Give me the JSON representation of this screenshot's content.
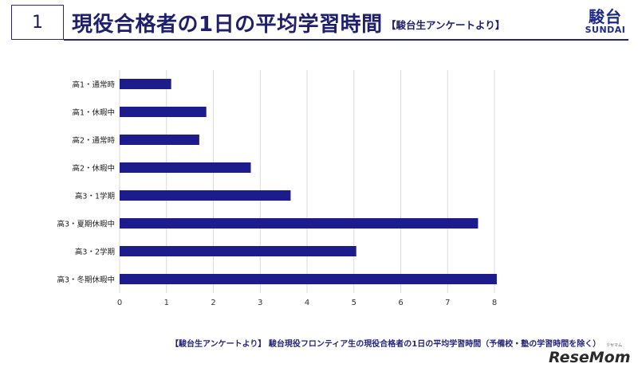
{
  "header": {
    "slide_number": "1",
    "title": "現役合格者の1日の平均学習時間",
    "subtitle": "【駿台生アンケートより】",
    "logo_kanji": "駿台",
    "logo_roman": "SUNDAI"
  },
  "chart_data": {
    "type": "bar",
    "orientation": "horizontal",
    "title": "",
    "categories": [
      "高1・通常時",
      "高1・休暇中",
      "高2・通常時",
      "高2・休暇中",
      "高3・1学期",
      "高3・夏期休暇中",
      "高3・2学期",
      "高3・冬期休暇中"
    ],
    "values": [
      1.1,
      1.85,
      1.7,
      2.8,
      3.65,
      7.65,
      5.05,
      8.05
    ],
    "xlim": [
      0,
      8
    ],
    "xticks": [
      "0",
      "1",
      "2",
      "3",
      "4",
      "5",
      "6",
      "7",
      "8"
    ],
    "xlabel": "",
    "ylabel": "",
    "grid": true,
    "bar_color": "#1c1c8c"
  },
  "caption": "【駿台生アンケートより】 駿台現役フロンティア生の現役合格者の1日の平均学習時間（予備校・塾の学習時間を除く）",
  "watermark": {
    "text": "ReseMom",
    "ruby": "リセマム"
  },
  "colors": {
    "accent": "#1f1f6b",
    "grid": "#d9d9d9"
  }
}
